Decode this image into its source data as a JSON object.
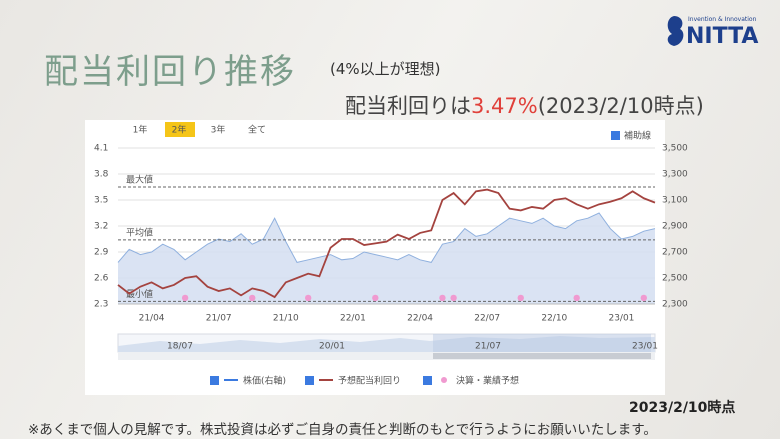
{
  "slide": {
    "title": "配当利回り推移",
    "note": "(4%以上が理想)",
    "headline": [
      "配当利回りは",
      "3.47%",
      "(2023/2/10時点)"
    ],
    "logo_tagline": "Invention & Innovation",
    "logo_name": "NITTA",
    "as_of": "2023/2/10時点",
    "disclaimer": "※あくまで個人の見解です。株式投資は必ずご自身の責任と判断のもとで行うようにお願いいたします。"
  },
  "chart_data": {
    "type": "line",
    "range_tabs": [
      "1年",
      "2年",
      "3年",
      "全て"
    ],
    "selected_tab": "2年",
    "toggle_label": "補助線",
    "categories": [
      null,
      null,
      null,
      "21/04",
      null,
      null,
      null,
      null,
      null,
      "21/07",
      null,
      null,
      null,
      null,
      null,
      "21/10",
      null,
      null,
      null,
      null,
      null,
      "22/01",
      null,
      null,
      null,
      null,
      null,
      "22/04",
      null,
      null,
      null,
      null,
      null,
      "22/07",
      null,
      null,
      null,
      null,
      null,
      "22/10",
      null,
      null,
      null,
      null,
      null,
      "23/01",
      null,
      null,
      null
    ],
    "ylim": [
      2.3,
      4.1
    ],
    "yticks": [
      2.3,
      2.6,
      2.9,
      3.2,
      3.5,
      3.8,
      4.1
    ],
    "y2lim": [
      2300,
      3500
    ],
    "y2ticks": [
      {
        "value": 2300,
        "label": "2,300"
      },
      {
        "value": 2500,
        "label": "2,500"
      },
      {
        "value": 2700,
        "label": "2,700"
      },
      {
        "value": 2900,
        "label": "2,900"
      },
      {
        "value": 3100,
        "label": "3,100"
      },
      {
        "value": 3300,
        "label": "3,300"
      },
      {
        "value": 3500,
        "label": "3,500"
      }
    ],
    "grid": true,
    "ref_lines": [
      {
        "label": "最大値",
        "value": 3.65
      },
      {
        "label": "平均値",
        "value": 3.04
      },
      {
        "label": "最小値",
        "value": 2.33
      }
    ],
    "series": [
      {
        "name": "株価(右軸)",
        "type": "area",
        "axis": "y2",
        "color": "#8fb0de",
        "values": [
          2620,
          2720,
          2680,
          2700,
          2760,
          2720,
          2640,
          2700,
          2760,
          2800,
          2780,
          2840,
          2760,
          2800,
          2960,
          2780,
          2620,
          2640,
          2660,
          2680,
          2640,
          2650,
          2700,
          2680,
          2660,
          2640,
          2680,
          2640,
          2620,
          2760,
          2780,
          2880,
          2820,
          2840,
          2900,
          2960,
          2940,
          2920,
          2960,
          2900,
          2880,
          2940,
          2960,
          3000,
          2880,
          2800,
          2820,
          2860,
          2880
        ]
      },
      {
        "name": "予想配当利回り",
        "type": "line",
        "color": "#a4433f",
        "values": [
          2.52,
          2.42,
          2.5,
          2.55,
          2.48,
          2.52,
          2.6,
          2.62,
          2.5,
          2.45,
          2.48,
          2.4,
          2.48,
          2.45,
          2.38,
          2.55,
          2.6,
          2.65,
          2.62,
          2.95,
          3.05,
          3.05,
          2.98,
          3.0,
          3.02,
          3.1,
          3.05,
          3.12,
          3.15,
          3.5,
          3.58,
          3.45,
          3.6,
          3.62,
          3.58,
          3.4,
          3.38,
          3.42,
          3.4,
          3.5,
          3.52,
          3.45,
          3.4,
          3.45,
          3.48,
          3.52,
          3.6,
          3.52,
          3.47
        ]
      },
      {
        "name": "決算・業績予想",
        "type": "scatter",
        "color": "#f09ad0",
        "values": [
          null,
          null,
          null,
          null,
          null,
          null,
          2.37,
          null,
          null,
          null,
          null,
          null,
          2.37,
          null,
          null,
          null,
          null,
          2.37,
          null,
          null,
          null,
          null,
          null,
          2.37,
          null,
          null,
          null,
          null,
          null,
          2.37,
          2.37,
          null,
          null,
          null,
          null,
          null,
          2.37,
          null,
          null,
          null,
          null,
          2.37,
          null,
          null,
          null,
          null,
          null,
          2.37,
          null
        ]
      }
    ],
    "navigator": {
      "labels": [
        "18/07",
        "20/01",
        "21/07",
        "23/01"
      ]
    }
  }
}
